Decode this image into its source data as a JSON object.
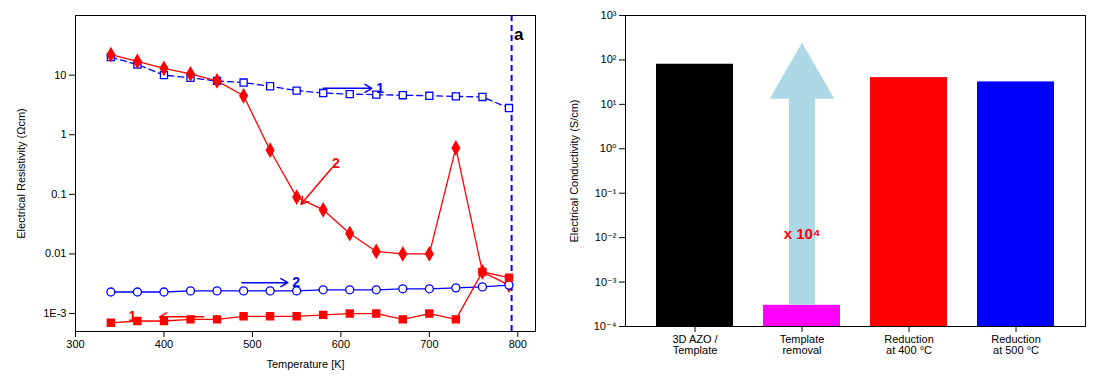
{
  "chart_data": [
    {
      "type": "line",
      "x": [
        340,
        370,
        400,
        430,
        460,
        490,
        520,
        550,
        580,
        610,
        640,
        670,
        700,
        730,
        760,
        790
      ],
      "series": [
        {
          "color": "blue",
          "line_style": "dashed",
          "marker": "open square",
          "values": [
            20.0,
            15.0,
            10.0,
            9.0,
            8.0,
            7.5,
            6.5,
            5.5,
            5.0,
            4.8,
            4.7,
            4.6,
            4.5,
            4.4,
            4.3,
            2.8
          ]
        },
        {
          "color": "red",
          "line_style": "solid",
          "marker": "diamond",
          "values": [
            22.0,
            17.0,
            13.0,
            10.5,
            8.0,
            4.5,
            0.55,
            0.09,
            0.055,
            0.022,
            0.011,
            0.01,
            0.01,
            0.6,
            0.005,
            0.003
          ]
        },
        {
          "color": "blue",
          "line_style": "solid",
          "marker": "open circle",
          "values": [
            0.0023,
            0.0023,
            0.0023,
            0.0024,
            0.0024,
            0.0024,
            0.0024,
            0.0024,
            0.0025,
            0.0025,
            0.0025,
            0.0026,
            0.0026,
            0.0027,
            0.0028,
            0.003
          ]
        },
        {
          "color": "red",
          "line_style": "solid",
          "marker": "square",
          "values": [
            0.0007,
            0.00075,
            0.00075,
            0.0008,
            0.0008,
            0.0009,
            0.0009,
            0.0009,
            0.00095,
            0.001,
            0.001,
            0.0008,
            0.001,
            0.0008,
            0.005,
            0.004
          ]
        }
      ],
      "vlines": [
        {
          "x": 793,
          "color": "blue",
          "line_style": "dashed"
        }
      ],
      "annotations": [
        {
          "text": "1",
          "x": 640,
          "y": 6.0,
          "color": "blue",
          "arrow": {
            "from": [
              580,
              6.0
            ],
            "to": [
              635,
              6.0
            ]
          }
        },
        {
          "text": "2",
          "x": 545,
          "y": 0.0033,
          "color": "blue",
          "arrow": {
            "from": [
              488,
              0.0033
            ],
            "to": [
              540,
              0.0033
            ]
          }
        },
        {
          "text": "2",
          "x": 590,
          "y": 0.28,
          "color": "red",
          "arrow": {
            "from": [
              590,
              0.28
            ],
            "to": [
              555,
              0.068
            ]
          }
        },
        {
          "text": "1",
          "x": 360,
          "y": 0.00088,
          "color": "red",
          "arrow": {
            "from": [
              445,
              0.00088
            ],
            "to": [
              395,
              0.00088
            ]
          }
        }
      ],
      "panel_label": "a",
      "xlabel": "Temperature [K]",
      "ylabel": "Electrical Resistivity (Ωcm)",
      "xlim": [
        300,
        820
      ],
      "xticks": [
        300,
        400,
        500,
        600,
        700,
        800
      ],
      "ylim": [
        0.0005,
        100
      ],
      "yticks": [
        10,
        1,
        0.1,
        0.01,
        {
          "value": 0.001,
          "label": "1E-3"
        }
      ],
      "log": "y",
      "grid": false
    },
    {
      "type": "bar",
      "categories": [
        "3D AZO /\nTemplate",
        "Template\nremoval",
        "Reduction\nat 400 °C",
        "Reduction\nat 500 °C"
      ],
      "values": [
        80.0,
        0.0003,
        40.0,
        32.0
      ],
      "colors": [
        "#000000",
        "#ff00ff",
        "#ff0000",
        "#0000ff"
      ],
      "ylabel": "Electrical Conductivity (S/cm)",
      "ylim": [
        0.0001,
        1000
      ],
      "yticks": [
        {
          "value": 0.0001,
          "label": "10⁻⁴"
        },
        {
          "value": 0.001,
          "label": "10⁻³"
        },
        {
          "value": 0.01,
          "label": "10⁻²"
        },
        {
          "value": 0.1,
          "label": "10⁻¹"
        },
        {
          "value": 1,
          "label": "10⁰"
        },
        {
          "value": 10,
          "label": "10¹"
        },
        {
          "value": 100,
          "label": "10²"
        },
        {
          "value": 1000,
          "label": "10³"
        }
      ],
      "annotations": [
        {
          "text": "x 10⁴",
          "x": "Template\nremoval",
          "y": 0.012,
          "color": "red",
          "arrow": {
            "from": 0.0003,
            "to": 35.0,
            "color": "lightblue"
          }
        }
      ],
      "log": "y",
      "grid": false
    }
  ]
}
